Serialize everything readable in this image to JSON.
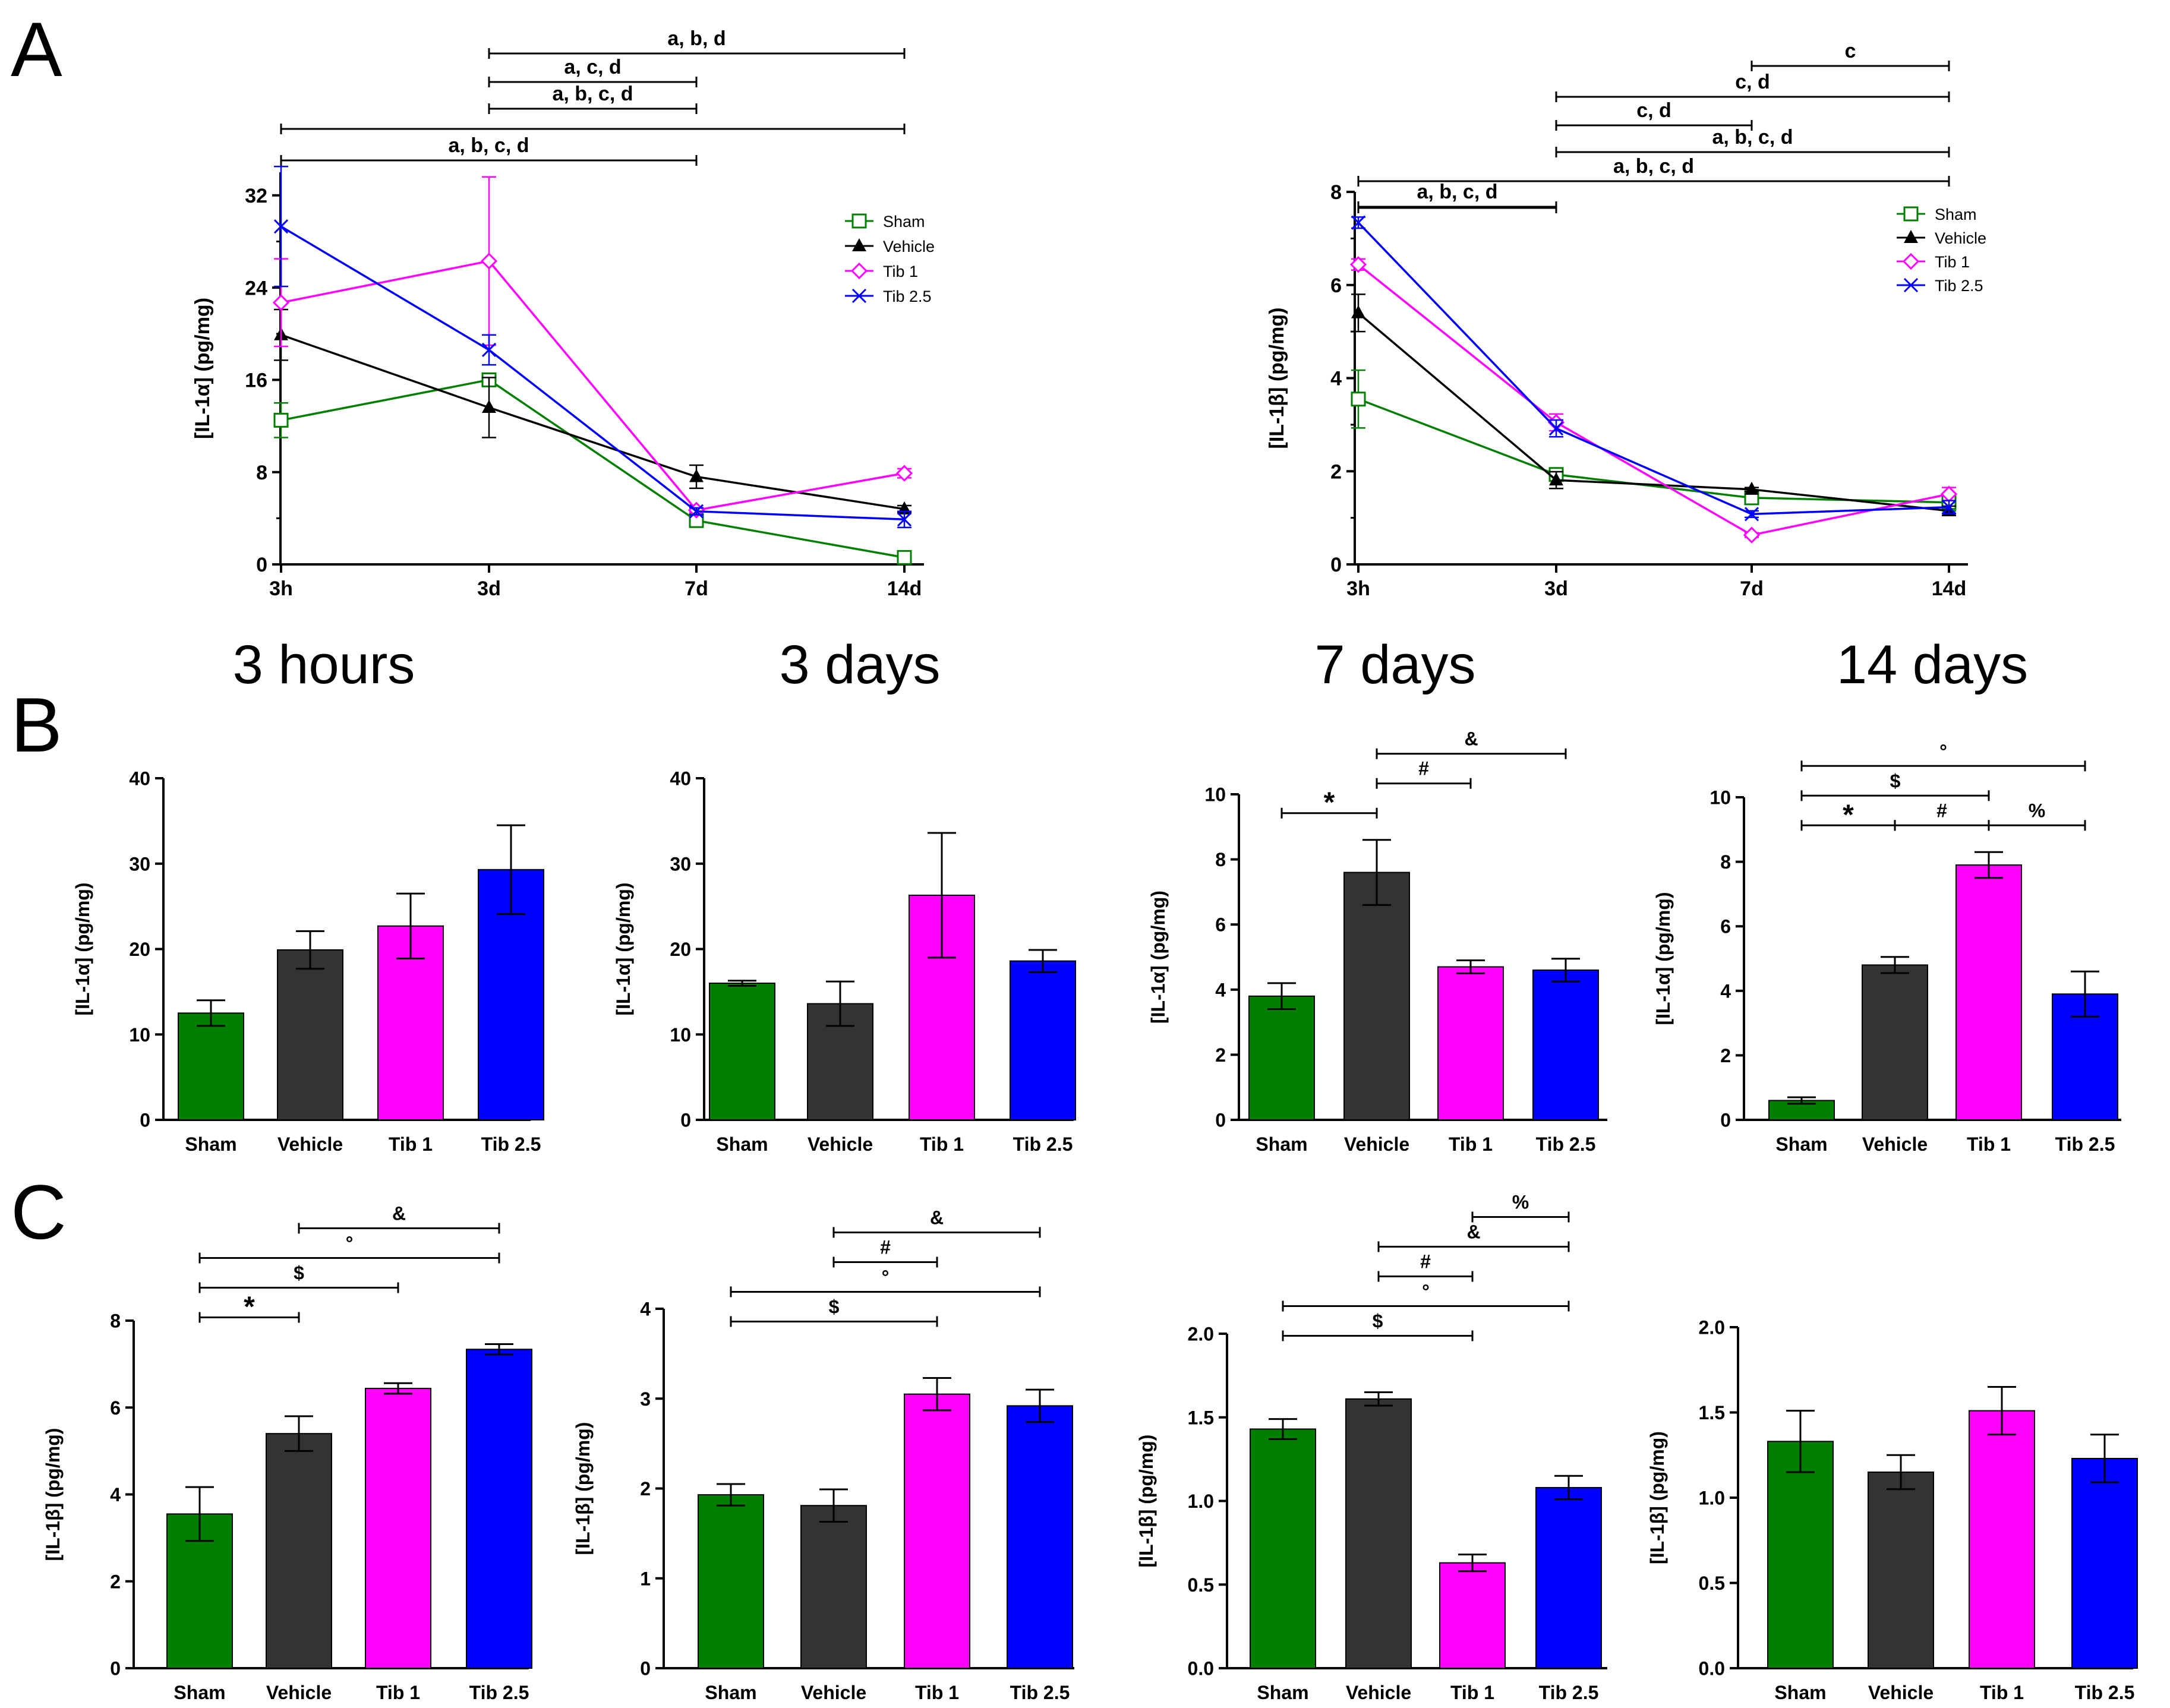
{
  "panel_labels": [
    "A",
    "B",
    "C"
  ],
  "time_headers": [
    "3 hours",
    "3 days",
    "7 days",
    "14 days"
  ],
  "colors": {
    "Sham": "#007F00",
    "Vehicle": "#333333",
    "Tib 1": "#FF00FF",
    "Tib 2.5": "#0000FF",
    "line_Vehicle": "#000000"
  },
  "chart_data": [
    {
      "id": "A-left",
      "type": "line",
      "xlabel": "",
      "ylabel": "[IL-1α] (pg/mg)",
      "categories": [
        "3h",
        "3d",
        "7d",
        "14d"
      ],
      "ylim": [
        0,
        34
      ],
      "yticks": [
        0,
        8,
        16,
        24,
        32
      ],
      "series": [
        {
          "name": "Sham",
          "marker": "square",
          "values": [
            12.5,
            16,
            3.8,
            0.6
          ],
          "errors": [
            1.5,
            0.3,
            0.4,
            0.1
          ]
        },
        {
          "name": "Vehicle",
          "marker": "triangle",
          "values": [
            19.9,
            13.6,
            7.6,
            4.8
          ],
          "errors": [
            2.2,
            2.6,
            1.0,
            0.3
          ]
        },
        {
          "name": "Tib 1",
          "marker": "diamond",
          "values": [
            22.7,
            26.3,
            4.7,
            7.9
          ],
          "errors": [
            3.8,
            7.3,
            0.2,
            0.4
          ]
        },
        {
          "name": "Tib 2.5",
          "marker": "x",
          "values": [
            29.3,
            18.6,
            4.6,
            3.9
          ],
          "errors": [
            5.2,
            1.3,
            0.3,
            0.7
          ]
        }
      ],
      "legend": [
        "Sham",
        "Vehicle",
        "Tib 1",
        "Tib 2.5"
      ],
      "brackets": [
        {
          "from": 1,
          "to": 3,
          "label": "a, b, d"
        },
        {
          "from": 1,
          "to": 2,
          "label": "a, c, d"
        },
        {
          "from": 1,
          "to": 2,
          "label": "a, b, c, d"
        },
        {
          "from": 0,
          "to": 3,
          "label": ""
        },
        {
          "from": 0,
          "to": 2,
          "label": "a, b, c, d"
        }
      ]
    },
    {
      "id": "A-right",
      "type": "line",
      "xlabel": "",
      "ylabel": "[IL-1β] (pg/mg)",
      "categories": [
        "3h",
        "3d",
        "7d",
        "14d"
      ],
      "ylim": [
        0,
        8
      ],
      "yticks": [
        0,
        2,
        4,
        6,
        8
      ],
      "series": [
        {
          "name": "Sham",
          "marker": "square",
          "values": [
            3.55,
            1.93,
            1.43,
            1.33
          ],
          "errors": [
            0.62,
            0.12,
            0.05,
            0.18
          ]
        },
        {
          "name": "Vehicle",
          "marker": "triangle",
          "values": [
            5.4,
            1.81,
            1.61,
            1.15
          ],
          "errors": [
            0.4,
            0.18,
            0.04,
            0.1
          ]
        },
        {
          "name": "Tib 1",
          "marker": "diamond",
          "values": [
            6.44,
            3.05,
            0.63,
            1.51
          ],
          "errors": [
            0.12,
            0.18,
            0.05,
            0.14
          ]
        },
        {
          "name": "Tib 2.5",
          "marker": "x",
          "values": [
            7.34,
            2.92,
            1.08,
            1.23
          ],
          "errors": [
            0.12,
            0.18,
            0.07,
            0.14
          ]
        }
      ],
      "legend": [
        "Sham",
        "Vehicle",
        "Tib 1",
        "Tib 2.5"
      ],
      "brackets": [
        {
          "from": 2,
          "to": 3,
          "label": "c"
        },
        {
          "from": 1,
          "to": 3,
          "label": "c, d"
        },
        {
          "from": 1,
          "to": 2,
          "label": "c, d"
        },
        {
          "from": 1,
          "to": 3,
          "label": "a, b, c, d"
        },
        {
          "from": 0,
          "to": 3,
          "label": "a, b, c, d"
        },
        {
          "from": 0,
          "to": 1,
          "label": "a, b, c, d"
        },
        {
          "from": 0,
          "to": 1,
          "label": ""
        }
      ]
    },
    {
      "id": "B-3h",
      "type": "bar",
      "ylabel": "[IL-1α] (pg/mg)",
      "categories": [
        "Sham",
        "Vehicle",
        "Tib 1",
        "Tib 2.5"
      ],
      "values": [
        12.5,
        19.9,
        22.7,
        29.3
      ],
      "errors": [
        1.5,
        2.2,
        3.8,
        5.2
      ],
      "ylim": [
        0,
        40
      ],
      "yticks": [
        0,
        10,
        20,
        30,
        40
      ],
      "tick_labels": [
        "0",
        "10",
        "20",
        "30",
        "40"
      ],
      "brackets": []
    },
    {
      "id": "B-3d",
      "type": "bar",
      "ylabel": "[IL-1α] (pg/mg)",
      "categories": [
        "Sham",
        "Vehicle",
        "Tib 1",
        "Tib 2.5"
      ],
      "values": [
        16.0,
        13.6,
        26.3,
        18.6
      ],
      "errors": [
        0.3,
        2.6,
        7.3,
        1.3
      ],
      "ylim": [
        0,
        40
      ],
      "yticks": [
        0,
        10,
        20,
        30,
        40
      ],
      "tick_labels": [
        "0",
        "10",
        "20",
        "30",
        "40"
      ],
      "brackets": []
    },
    {
      "id": "B-7d",
      "type": "bar",
      "ylabel": "[IL-1α] (pg/mg)",
      "categories": [
        "Sham",
        "Vehicle",
        "Tib 1",
        "Tib 2.5"
      ],
      "values": [
        3.8,
        7.6,
        4.7,
        4.6
      ],
      "errors": [
        0.4,
        1.0,
        0.2,
        0.35
      ],
      "ylim": [
        0,
        10
      ],
      "yticks": [
        0,
        2,
        4,
        6,
        8,
        10
      ],
      "tick_labels": [
        "0",
        "2",
        "4",
        "6",
        "8",
        "10"
      ],
      "brackets": [
        {
          "from": 1,
          "to": 3,
          "label": "&",
          "level": 3
        },
        {
          "from": 1,
          "to": 2,
          "label": "#",
          "level": 2
        },
        {
          "from": 0,
          "to": 1,
          "label": "*",
          "level": 1
        }
      ]
    },
    {
      "id": "B-14d",
      "type": "bar",
      "ylabel": "[IL-1α] (pg/mg)",
      "categories": [
        "Sham",
        "Vehicle",
        "Tib 1",
        "Tib 2.5"
      ],
      "values": [
        0.6,
        4.8,
        7.9,
        3.9
      ],
      "errors": [
        0.1,
        0.25,
        0.4,
        0.7
      ],
      "ylim": [
        0,
        10
      ],
      "yticks": [
        0,
        2,
        4,
        6,
        8,
        10
      ],
      "tick_labels": [
        "0",
        "2",
        "4",
        "6",
        "8",
        "10"
      ],
      "brackets": [
        {
          "from": 0,
          "to": 3,
          "label": "°",
          "level": 3
        },
        {
          "from": 0,
          "to": 2,
          "label": "$",
          "level": 2
        },
        {
          "from": 0,
          "to": 1,
          "label": "*",
          "level": 1
        },
        {
          "from": 1,
          "to": 2,
          "label": "#",
          "level": 1
        },
        {
          "from": 2,
          "to": 3,
          "label": "%",
          "level": 1
        }
      ]
    },
    {
      "id": "C-3h",
      "type": "bar",
      "ylabel": "[IL-1β] (pg/mg)",
      "categories": [
        "Sham",
        "Vehicle",
        "Tib 1",
        "Tib 2.5"
      ],
      "values": [
        3.55,
        5.4,
        6.44,
        7.34
      ],
      "errors": [
        0.62,
        0.4,
        0.12,
        0.12
      ],
      "ylim": [
        0,
        8
      ],
      "yticks": [
        0,
        2,
        4,
        6,
        8
      ],
      "tick_labels": [
        "0",
        "2",
        "4",
        "6",
        "8"
      ],
      "brackets": [
        {
          "from": 1,
          "to": 3,
          "label": "&",
          "level": 4
        },
        {
          "from": 0,
          "to": 3,
          "label": "°",
          "level": 3
        },
        {
          "from": 0,
          "to": 2,
          "label": "$",
          "level": 2
        },
        {
          "from": 0,
          "to": 1,
          "label": "*",
          "level": 1
        }
      ]
    },
    {
      "id": "C-3d",
      "type": "bar",
      "ylabel": "[IL-1β] (pg/mg)",
      "categories": [
        "Sham",
        "Vehicle",
        "Tib 1",
        "Tib 2.5"
      ],
      "values": [
        1.93,
        1.81,
        3.05,
        2.92
      ],
      "errors": [
        0.12,
        0.18,
        0.18,
        0.18
      ],
      "ylim": [
        0,
        4
      ],
      "yticks": [
        0,
        1,
        2,
        3,
        4
      ],
      "tick_labels": [
        "0",
        "1",
        "2",
        "3",
        "4"
      ],
      "brackets": [
        {
          "from": 1,
          "to": 3,
          "label": "&",
          "level": 5
        },
        {
          "from": 1,
          "to": 2,
          "label": "#",
          "level": 4
        },
        {
          "from": 0,
          "to": 3,
          "label": "°",
          "level": 3
        },
        {
          "from": 0,
          "to": 2,
          "label": "$",
          "level": 2
        }
      ]
    },
    {
      "id": "C-7d",
      "type": "bar",
      "ylabel": "[IL-1β] (pg/mg)",
      "categories": [
        "Sham",
        "Vehicle",
        "Tib 1",
        "Tib 2.5"
      ],
      "values": [
        1.43,
        1.61,
        0.63,
        1.08
      ],
      "errors": [
        0.06,
        0.04,
        0.05,
        0.07
      ],
      "ylim": [
        0,
        2
      ],
      "yticks": [
        0,
        0.5,
        1,
        1.5,
        2
      ],
      "tick_labels": [
        "0.0",
        "0.5",
        "1.0",
        "1.5",
        "2.0"
      ],
      "brackets": [
        {
          "from": 2,
          "to": 3,
          "label": "%",
          "level": 6
        },
        {
          "from": 1,
          "to": 3,
          "label": "&",
          "level": 5
        },
        {
          "from": 1,
          "to": 2,
          "label": "#",
          "level": 4
        },
        {
          "from": 0,
          "to": 3,
          "label": "°",
          "level": 3
        },
        {
          "from": 0,
          "to": 2,
          "label": "$",
          "level": 2
        }
      ]
    },
    {
      "id": "C-14d",
      "type": "bar",
      "ylabel": "[IL-1β] (pg/mg)",
      "categories": [
        "Sham",
        "Vehicle",
        "Tib 1",
        "Tib 2.5"
      ],
      "values": [
        1.33,
        1.15,
        1.51,
        1.23
      ],
      "errors": [
        0.18,
        0.1,
        0.14,
        0.14
      ],
      "ylim": [
        0,
        2
      ],
      "yticks": [
        0,
        0.5,
        1,
        1.5,
        2
      ],
      "tick_labels": [
        "0.0",
        "0.5",
        "1.0",
        "1.5",
        "2.0"
      ],
      "brackets": []
    }
  ]
}
